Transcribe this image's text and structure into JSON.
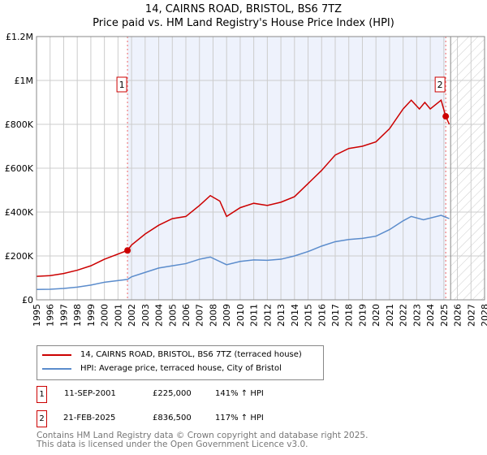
{
  "chart_data": {
    "type": "line",
    "title": "14, CAIRNS ROAD, BRISTOL, BS6 7TZ",
    "subtitle": "Price paid vs. HM Land Registry's House Price Index (HPI)",
    "xlim": [
      1995,
      2028
    ],
    "ylim": [
      0,
      1200000
    ],
    "x_ticks": [
      "1995",
      "1996",
      "1997",
      "1998",
      "1999",
      "2000",
      "2001",
      "2002",
      "2003",
      "2004",
      "2005",
      "2006",
      "2007",
      "2008",
      "2009",
      "2010",
      "2011",
      "2012",
      "2013",
      "2014",
      "2015",
      "2016",
      "2017",
      "2018",
      "2019",
      "2020",
      "2021",
      "2022",
      "2023",
      "2024",
      "2025",
      "2026",
      "2027",
      "2028"
    ],
    "y_ticks": [
      {
        "v": 0,
        "l": "£0"
      },
      {
        "v": 200000,
        "l": "£200K"
      },
      {
        "v": 400000,
        "l": "£400K"
      },
      {
        "v": 600000,
        "l": "£600K"
      },
      {
        "v": 800000,
        "l": "£800K"
      },
      {
        "v": 1000000,
        "l": "£1M"
      },
      {
        "v": 1200000,
        "l": "£1.2M"
      }
    ],
    "grid": true,
    "series": [
      {
        "name": "14, CAIRNS ROAD, BRISTOL, BS6 7TZ (terraced house)",
        "color": "#cc0000",
        "x": [
          1995,
          1996,
          1997,
          1998,
          1999,
          2000,
          2001.7,
          2002,
          2003,
          2004,
          2005,
          2006,
          2007,
          2007.8,
          2008.5,
          2009,
          2010,
          2011,
          2012,
          2013,
          2014,
          2015,
          2016,
          2017,
          2018,
          2019,
          2020,
          2021,
          2022,
          2022.6,
          2023.2,
          2023.6,
          2024,
          2024.8,
          2025.14,
          2025.4
        ],
        "y": [
          107000,
          110000,
          120000,
          135000,
          155000,
          185000,
          225000,
          250000,
          300000,
          340000,
          370000,
          380000,
          430000,
          475000,
          450000,
          380000,
          420000,
          440000,
          430000,
          445000,
          470000,
          530000,
          590000,
          660000,
          690000,
          700000,
          720000,
          780000,
          870000,
          910000,
          870000,
          900000,
          870000,
          910000,
          836500,
          800000
        ]
      },
      {
        "name": "HPI: Average price, terraced house, City of Bristol",
        "color": "#5b8ccc",
        "x": [
          1995,
          1996,
          1997,
          1998,
          1999,
          2000,
          2001.7,
          2002,
          2003,
          2004,
          2005,
          2006,
          2007,
          2007.8,
          2009,
          2010,
          2011,
          2012,
          2013,
          2014,
          2015,
          2016,
          2017,
          2018,
          2019,
          2020,
          2021,
          2022,
          2022.6,
          2023.5,
          2024.8,
          2025.4
        ],
        "y": [
          47000,
          48000,
          52000,
          58000,
          67000,
          80000,
          93000,
          105000,
          125000,
          145000,
          155000,
          165000,
          185000,
          195000,
          160000,
          175000,
          182000,
          180000,
          185000,
          200000,
          220000,
          245000,
          265000,
          275000,
          280000,
          290000,
          320000,
          360000,
          380000,
          365000,
          385000,
          370000
        ]
      }
    ],
    "sales": [
      {
        "label": "1",
        "x": 2001.7,
        "y": 225000,
        "date": "11-SEP-2001",
        "price": "£225,000",
        "hpi": "141% ↑ HPI"
      },
      {
        "label": "2",
        "x": 2025.14,
        "y": 836500,
        "date": "21-FEB-2025",
        "price": "£836,500",
        "hpi": "117% ↑ HPI"
      }
    ],
    "shaded_period": [
      2001.7,
      2025.14
    ],
    "forecast_from": 2025.5
  },
  "footer": {
    "line1": "Contains HM Land Registry data © Crown copyright and database right 2025.",
    "line2": "This data is licensed under the Open Government Licence v3.0."
  }
}
